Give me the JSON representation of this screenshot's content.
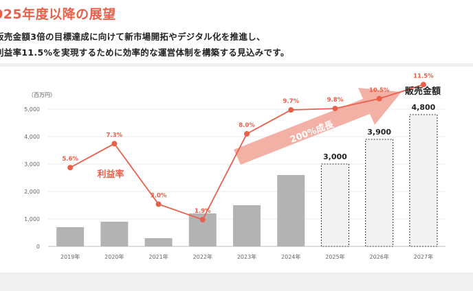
{
  "header": {
    "title": "025年度以降の展望",
    "line1": "販売金額3倍の目標達成に向けて新市場開拓やデジタル化を推進し、",
    "line2": "利益率11.5%を実現するために効率的な運営体制を構築する見込みです。"
  },
  "chart_data": {
    "type": "bar+line",
    "unit_label": "（百万円）",
    "categories": [
      "2019年",
      "2020年",
      "2021年",
      "2022年",
      "2023年",
      "2024年",
      "2025年",
      "2026年",
      "2027年"
    ],
    "ylim": [
      0,
      5000
    ],
    "yticks": [
      "0",
      "1,000",
      "2,000",
      "3,000",
      "4,000",
      "5,000"
    ],
    "grid": true,
    "bars": {
      "name": "販売金額",
      "values": [
        700,
        900,
        300,
        1200,
        1500,
        2600,
        3000,
        3900,
        4800
      ],
      "forecast_from_index": 6,
      "forecast_labels": [
        "3,000",
        "3,900",
        "4,800"
      ],
      "color": "#b3b3b3",
      "forecast_fill": "#f2f2f2"
    },
    "line": {
      "name": "利益率",
      "values": [
        5.6,
        7.3,
        3.0,
        1.9,
        8.0,
        9.7,
        9.8,
        10.5,
        11.5
      ],
      "labels": [
        "5.6%",
        "7.3%",
        "3.0%",
        "1.9%",
        "8.0%",
        "9.7%",
        "9.8%",
        "10.5%",
        "11.5%"
      ],
      "color": "#e8604a"
    },
    "arrow_label": "200%成長",
    "arrow_color": "#f2a99c"
  }
}
